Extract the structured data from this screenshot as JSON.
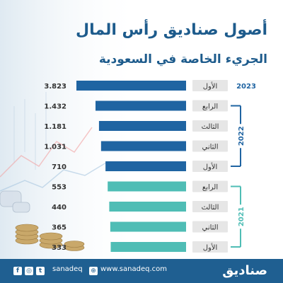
{
  "title_line1": "أصول صناديق رأس المال",
  "title_line2": "الجريء الخاصة في السعودية",
  "colors": {
    "dark_bar": "#1f64a2",
    "light_bar": "#4fbdb5",
    "label_box": "#e6e6e6",
    "year_line": "#1f64a2",
    "year_line_2021": "#4fbdb5"
  },
  "chart_data": {
    "type": "bar",
    "orientation": "horizontal",
    "xlim": [
      0,
      3.823
    ],
    "rows": [
      {
        "year": "2023",
        "quarter": "الأول",
        "value": 3.823,
        "label": "3.823",
        "group": 0
      },
      {
        "year": "2022",
        "quarter": "الرابع",
        "value": 1.432,
        "label": "1.432",
        "group": 1
      },
      {
        "year": "2022",
        "quarter": "الثالث",
        "value": 1.181,
        "label": "1.181",
        "group": 1
      },
      {
        "year": "2022",
        "quarter": "الثاني",
        "value": 1.031,
        "label": "1.031",
        "group": 1
      },
      {
        "year": "2022",
        "quarter": "الأول",
        "value": 710,
        "label": "710",
        "group": 1
      },
      {
        "year": "2021",
        "quarter": "الرابع",
        "value": 553,
        "label": "553",
        "group": 2
      },
      {
        "year": "2021",
        "quarter": "الثالث",
        "value": 440,
        "label": "440",
        "group": 2
      },
      {
        "year": "2021",
        "quarter": "الثاني",
        "value": 365,
        "label": "365",
        "group": 2
      },
      {
        "year": "2021",
        "quarter": "الأول",
        "value": 333,
        "label": "333",
        "group": 2
      }
    ],
    "year_groups": [
      {
        "year": "2023"
      },
      {
        "year": "2022"
      },
      {
        "year": "2021"
      }
    ]
  },
  "footer": {
    "handle": "sanadeq",
    "website": "www.sanadeq.com",
    "logo": "صناديق"
  },
  "icons": [
    "facebook-icon",
    "instagram-icon",
    "twitter-icon",
    "globe-icon"
  ]
}
